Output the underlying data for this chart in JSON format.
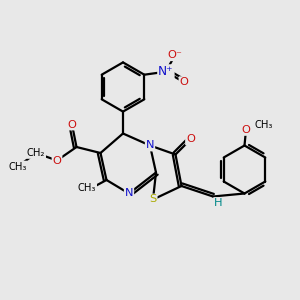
{
  "bg_color": "#e8e8e8",
  "atom_colors": {
    "C": "#000000",
    "N": "#1010cc",
    "O": "#cc1010",
    "S": "#aaaa00",
    "H": "#008888"
  },
  "bond_color": "#000000",
  "bond_width": 1.6,
  "figsize": [
    3.0,
    3.0
  ],
  "dpi": 100,
  "xlim": [
    0,
    10
  ],
  "ylim": [
    0,
    10
  ]
}
